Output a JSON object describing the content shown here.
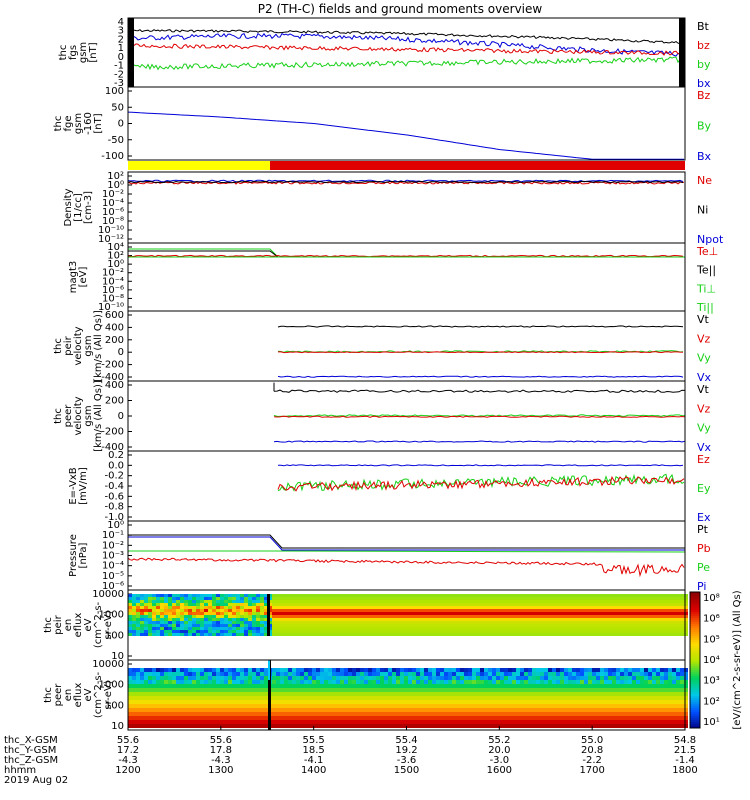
{
  "title": "P2 (TH-C) fields and ground moments overview",
  "colors": {
    "black": "#000000",
    "red": "#e00000",
    "green": "#18d018",
    "blue": "#0000d8",
    "yellow": "#ffff00"
  },
  "panels": [
    {
      "id": "fgs",
      "ylabel": [
        "thc",
        "fgs",
        "gsm",
        "[nT]"
      ],
      "ticks": [
        "4",
        "3",
        "2",
        "1",
        "0",
        "-1",
        "-2",
        "-3"
      ],
      "legend": [
        {
          "text": "Bt",
          "color": "black"
        },
        {
          "text": "bz",
          "color": "red"
        },
        {
          "text": "by",
          "color": "green"
        },
        {
          "text": "bx",
          "color": "blue"
        }
      ]
    },
    {
      "id": "fge",
      "ylabel": [
        "thc",
        "fge",
        "gsm",
        "-160",
        "[nT]"
      ],
      "ticks": [
        "100",
        "50",
        "0",
        "-50",
        "-100"
      ],
      "legend": [
        {
          "text": "Bz",
          "color": "red"
        },
        {
          "text": "By",
          "color": "green"
        },
        {
          "text": "Bx",
          "color": "blue"
        }
      ]
    },
    {
      "id": "dens",
      "ylabel": [
        "Density",
        "[1/cc]",
        "[cm-3]"
      ],
      "ticks": [
        "10²",
        "10⁰",
        "10⁻²",
        "10⁻⁴",
        "10⁻⁶",
        "10⁻⁸",
        "10⁻¹⁰",
        "10⁻¹²"
      ],
      "legend": [
        {
          "text": "Ne",
          "color": "red"
        },
        {
          "text": "Ni",
          "color": "black"
        },
        {
          "text": "Npot",
          "color": "blue"
        }
      ]
    },
    {
      "id": "temp",
      "ylabel": [
        "magt3",
        "[eV]"
      ],
      "ticks": [
        "10⁴",
        "10²",
        "10⁰",
        "10⁻²",
        "10⁻⁴",
        "10⁻⁶",
        "10⁻⁸",
        "10⁻¹⁰"
      ],
      "legend": [
        {
          "text": "Te⊥",
          "color": "red"
        },
        {
          "text": "Te||",
          "color": "black"
        },
        {
          "text": "Ti⊥",
          "color": "green"
        },
        {
          "text": "Ti||",
          "color": "green"
        }
      ]
    },
    {
      "id": "vpeir",
      "ylabel": [
        "thc",
        "peir",
        "velocity",
        "gsm",
        "[km/s (All Qs)]"
      ],
      "ticks": [
        "600",
        "400",
        "200",
        "0",
        "-200",
        "-400"
      ],
      "legend": [
        {
          "text": "Vt",
          "color": "black"
        },
        {
          "text": "Vz",
          "color": "red"
        },
        {
          "text": "Vy",
          "color": "green"
        },
        {
          "text": "Vx",
          "color": "blue"
        }
      ]
    },
    {
      "id": "vpeer",
      "ylabel": [
        "thc",
        "peer",
        "velocity",
        "gsm",
        "[km/s (All Qs)]"
      ],
      "ticks": [
        "400",
        "200",
        "0",
        "-200",
        "-400"
      ],
      "legend": [
        {
          "text": "Vt",
          "color": "black"
        },
        {
          "text": "Vz",
          "color": "red"
        },
        {
          "text": "Vy",
          "color": "green"
        },
        {
          "text": "Vx",
          "color": "blue"
        }
      ]
    },
    {
      "id": "efield",
      "ylabel": [
        "E=-VxB",
        "[mV/m]"
      ],
      "ticks": [
        "0.2",
        "0.0",
        "-0.2",
        "-0.4",
        "-0.6",
        "-0.8",
        "-1.0"
      ],
      "legend": [
        {
          "text": "Ez",
          "color": "red"
        },
        {
          "text": "Ey",
          "color": "green"
        },
        {
          "text": "Ex",
          "color": "blue"
        }
      ]
    },
    {
      "id": "press",
      "ylabel": [
        "Pressure",
        "[nPa]"
      ],
      "ticks": [
        "10⁰",
        "10⁻¹",
        "10⁻²",
        "10⁻³",
        "10⁻⁴",
        "10⁻⁵",
        "10⁻⁶"
      ],
      "legend": [
        {
          "text": "Pt",
          "color": "black"
        },
        {
          "text": "Pb",
          "color": "red"
        },
        {
          "text": "Pe",
          "color": "green"
        },
        {
          "text": "Pi",
          "color": "blue"
        }
      ]
    },
    {
      "id": "ionspec",
      "ylabel": [
        "thc",
        "peir",
        "en",
        "eflux",
        "eV",
        "(cm^2-s-",
        "sr-eV)"
      ],
      "ticks": [
        "10000",
        "1000",
        "100",
        "10"
      ],
      "legend": []
    },
    {
      "id": "elecspec",
      "ylabel": [
        "thc",
        "peer",
        "en",
        "eflux",
        "eV",
        "(cm^2-s-",
        "sr-eV)"
      ],
      "ticks": [
        "10000",
        "1000",
        "100",
        "10"
      ],
      "legend": []
    }
  ],
  "colorbar": {
    "label": "[eV/(cm^2-s-sr-eV)] (All Qs)",
    "ticks": [
      "10⁸",
      "10⁶",
      "10⁵",
      "10⁴",
      "10³",
      "10²",
      "10¹"
    ]
  },
  "xaxis": {
    "row_labels": [
      "thc_X-GSM",
      "thc_Y-GSM",
      "thc_Z-GSM",
      "hhmm",
      "2019 Aug 02"
    ],
    "columns": [
      [
        "55.6",
        "17.2",
        "-4.3",
        "1200"
      ],
      [
        "55.6",
        "17.8",
        "-4.3",
        "1300"
      ],
      [
        "55.5",
        "18.5",
        "-4.1",
        "1400"
      ],
      [
        "55.4",
        "19.2",
        "-3.6",
        "1500"
      ],
      [
        "55.2",
        "20.0",
        "-3.0",
        "1600"
      ],
      [
        "55.0",
        "20.8",
        "-2.2",
        "1700"
      ],
      [
        "54.8",
        "21.5",
        "-1.4",
        "1800"
      ]
    ]
  },
  "chart_data": {
    "type": "line",
    "title": "P2 (TH-C) fields and ground moments overview",
    "x_hhmm": [
      "1200",
      "1300",
      "1400",
      "1500",
      "1600",
      "1700",
      "1800"
    ],
    "fgs_nT": {
      "Bt": [
        3.0,
        3.0,
        2.9,
        2.6,
        2.4,
        1.9,
        1.5
      ],
      "bz": [
        1.3,
        1.5,
        1.3,
        1.0,
        0.8,
        0.5,
        0.3
      ],
      "by": [
        -1.3,
        -0.9,
        -0.9,
        -0.8,
        -0.8,
        -0.6,
        -0.2
      ],
      "bx": [
        2.0,
        2.3,
        2.5,
        2.4,
        2.1,
        1.2,
        0.7
      ]
    },
    "fge_nT_minus160": {
      "Bx": [
        35,
        20,
        0,
        -35,
        -80,
        -110,
        -110
      ]
    },
    "velocity_peir_kms": {
      "Vt": [
        null,
        null,
        420,
        410,
        400,
        400,
        400
      ],
      "Vz": [
        null,
        null,
        0,
        0,
        0,
        0,
        0
      ],
      "Vy": [
        null,
        null,
        5,
        5,
        10,
        10,
        15
      ],
      "Vx": [
        null,
        null,
        -400,
        -395,
        -390,
        -385,
        -385
      ]
    },
    "velocity_peer_kms": {
      "Vt": [
        null,
        null,
        330,
        320,
        320,
        310,
        310
      ],
      "Vz": [
        null,
        null,
        -10,
        -10,
        -10,
        -10,
        -10
      ],
      "Vy": [
        null,
        null,
        0,
        5,
        5,
        5,
        10
      ],
      "Vx": [
        null,
        null,
        -330,
        -330,
        -330,
        -330,
        -330
      ]
    },
    "efield_mVm": {
      "Ez": [
        null,
        null,
        -0.42,
        -0.38,
        -0.36,
        -0.32,
        -0.22
      ],
      "Ey": [
        null,
        null,
        -0.4,
        -0.36,
        -0.33,
        -0.3,
        -0.18
      ],
      "Ex": [
        null,
        null,
        0.0,
        0.0,
        0.0,
        0.0,
        0.0
      ]
    }
  }
}
